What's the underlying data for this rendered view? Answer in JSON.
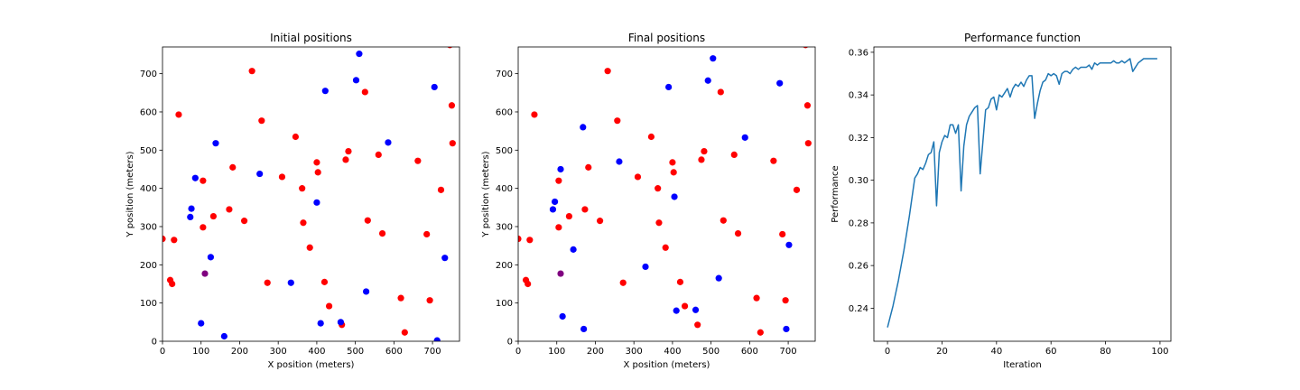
{
  "chart_data": [
    {
      "type": "scatter",
      "title": "Initial positions",
      "xlabel": "X position (meters)",
      "ylabel": "Y position (meters)",
      "xlim": [
        0,
        770
      ],
      "ylim": [
        0,
        770
      ],
      "xticks": [
        0,
        100,
        200,
        300,
        400,
        500,
        600,
        700
      ],
      "yticks": [
        0,
        100,
        200,
        300,
        400,
        500,
        600,
        700
      ],
      "grid": false,
      "colors": {
        "red": "#ff0000",
        "blue": "#0000ff",
        "purple": "#800080"
      },
      "red": [
        [
          0,
          268
        ],
        [
          30,
          265
        ],
        [
          20,
          160
        ],
        [
          25,
          150
        ],
        [
          42,
          593
        ],
        [
          105,
          420
        ],
        [
          105,
          298
        ],
        [
          132,
          327
        ],
        [
          173,
          345
        ],
        [
          182,
          455
        ],
        [
          212,
          315
        ],
        [
          232,
          707
        ],
        [
          257,
          577
        ],
        [
          272,
          153
        ],
        [
          310,
          430
        ],
        [
          345,
          535
        ],
        [
          362,
          400
        ],
        [
          365,
          310
        ],
        [
          382,
          245
        ],
        [
          400,
          468
        ],
        [
          403,
          442
        ],
        [
          420,
          155
        ],
        [
          432,
          92
        ],
        [
          465,
          43
        ],
        [
          475,
          475
        ],
        [
          482,
          497
        ],
        [
          525,
          652
        ],
        [
          532,
          316
        ],
        [
          560,
          488
        ],
        [
          570,
          282
        ],
        [
          618,
          113
        ],
        [
          628,
          23
        ],
        [
          662,
          472
        ],
        [
          685,
          280
        ],
        [
          693,
          107
        ],
        [
          722,
          396
        ],
        [
          745,
          775
        ],
        [
          750,
          617
        ],
        [
          752,
          518
        ]
      ],
      "blue": [
        [
          85,
          427
        ],
        [
          100,
          47
        ],
        [
          138,
          518
        ],
        [
          160,
          13
        ],
        [
          75,
          347
        ],
        [
          72,
          325
        ],
        [
          125,
          220
        ],
        [
          252,
          438
        ],
        [
          333,
          153
        ],
        [
          400,
          363
        ],
        [
          410,
          47
        ],
        [
          422,
          655
        ],
        [
          462,
          50
        ],
        [
          502,
          683
        ],
        [
          510,
          752
        ],
        [
          528,
          130
        ],
        [
          585,
          520
        ],
        [
          705,
          665
        ],
        [
          712,
          2
        ],
        [
          732,
          218
        ]
      ],
      "purple": [
        [
          110,
          177
        ]
      ]
    },
    {
      "type": "scatter",
      "title": "Final positions",
      "xlabel": "X position (meters)",
      "ylabel": "Y position (meters)",
      "xlim": [
        0,
        770
      ],
      "ylim": [
        0,
        770
      ],
      "xticks": [
        0,
        100,
        200,
        300,
        400,
        500,
        600,
        700
      ],
      "yticks": [
        0,
        100,
        200,
        300,
        400,
        500,
        600,
        700
      ],
      "grid": false,
      "colors": {
        "red": "#ff0000",
        "blue": "#0000ff",
        "purple": "#800080"
      },
      "red": [
        [
          0,
          268
        ],
        [
          30,
          265
        ],
        [
          20,
          160
        ],
        [
          25,
          150
        ],
        [
          42,
          593
        ],
        [
          105,
          420
        ],
        [
          105,
          298
        ],
        [
          132,
          327
        ],
        [
          173,
          345
        ],
        [
          182,
          455
        ],
        [
          212,
          315
        ],
        [
          232,
          707
        ],
        [
          257,
          577
        ],
        [
          272,
          153
        ],
        [
          310,
          430
        ],
        [
          345,
          535
        ],
        [
          362,
          400
        ],
        [
          365,
          310
        ],
        [
          382,
          245
        ],
        [
          400,
          468
        ],
        [
          403,
          442
        ],
        [
          420,
          155
        ],
        [
          432,
          92
        ],
        [
          465,
          43
        ],
        [
          475,
          475
        ],
        [
          482,
          497
        ],
        [
          525,
          652
        ],
        [
          532,
          316
        ],
        [
          560,
          488
        ],
        [
          570,
          282
        ],
        [
          618,
          113
        ],
        [
          628,
          23
        ],
        [
          662,
          472
        ],
        [
          685,
          280
        ],
        [
          693,
          107
        ],
        [
          722,
          396
        ],
        [
          745,
          775
        ],
        [
          750,
          617
        ],
        [
          752,
          518
        ]
      ],
      "blue": [
        [
          90,
          345
        ],
        [
          95,
          365
        ],
        [
          110,
          450
        ],
        [
          115,
          65
        ],
        [
          143,
          240
        ],
        [
          168,
          560
        ],
        [
          170,
          32
        ],
        [
          262,
          470
        ],
        [
          330,
          195
        ],
        [
          390,
          665
        ],
        [
          405,
          378
        ],
        [
          410,
          80
        ],
        [
          460,
          82
        ],
        [
          492,
          682
        ],
        [
          505,
          740
        ],
        [
          520,
          165
        ],
        [
          588,
          533
        ],
        [
          678,
          675
        ],
        [
          695,
          32
        ],
        [
          702,
          252
        ]
      ],
      "purple": [
        [
          110,
          177
        ]
      ]
    },
    {
      "type": "line",
      "title": "Performance function",
      "xlabel": "Iteration",
      "ylabel": "Performance",
      "xlim": [
        -5,
        104
      ],
      "ylim": [
        0.2245,
        0.3625
      ],
      "xticks": [
        0,
        20,
        40,
        60,
        80,
        100
      ],
      "yticks": [
        0.24,
        0.26,
        0.28,
        0.3,
        0.32,
        0.34,
        0.36
      ],
      "ytick_labels": [
        "0.24",
        "0.26",
        "0.28",
        "0.30",
        "0.32",
        "0.34",
        "0.36"
      ],
      "grid": false,
      "series": [
        {
          "color": "#1f77b4",
          "x": [
            0,
            1,
            2,
            3,
            4,
            5,
            6,
            7,
            8,
            9,
            10,
            11,
            12,
            13,
            14,
            15,
            16,
            17,
            18,
            19,
            20,
            21,
            22,
            23,
            24,
            25,
            26,
            27,
            28,
            29,
            30,
            31,
            32,
            33,
            34,
            35,
            36,
            37,
            38,
            39,
            40,
            41,
            42,
            43,
            44,
            45,
            46,
            47,
            48,
            49,
            50,
            51,
            52,
            53,
            54,
            55,
            56,
            57,
            58,
            59,
            60,
            61,
            62,
            63,
            64,
            65,
            66,
            67,
            68,
            69,
            70,
            71,
            72,
            73,
            74,
            75,
            76,
            77,
            78,
            79,
            80,
            81,
            82,
            83,
            84,
            85,
            86,
            87,
            88,
            89,
            90,
            91,
            92,
            93,
            94,
            95,
            96,
            97,
            98,
            99
          ],
          "values": [
            0.231,
            0.236,
            0.241,
            0.247,
            0.253,
            0.26,
            0.267,
            0.275,
            0.283,
            0.292,
            0.301,
            0.303,
            0.306,
            0.305,
            0.308,
            0.312,
            0.313,
            0.318,
            0.288,
            0.313,
            0.318,
            0.321,
            0.32,
            0.326,
            0.326,
            0.322,
            0.326,
            0.295,
            0.316,
            0.326,
            0.33,
            0.332,
            0.334,
            0.335,
            0.303,
            0.318,
            0.333,
            0.334,
            0.338,
            0.339,
            0.333,
            0.34,
            0.339,
            0.341,
            0.343,
            0.339,
            0.343,
            0.345,
            0.344,
            0.346,
            0.344,
            0.347,
            0.349,
            0.349,
            0.329,
            0.336,
            0.342,
            0.346,
            0.347,
            0.35,
            0.349,
            0.35,
            0.349,
            0.345,
            0.35,
            0.351,
            0.351,
            0.35,
            0.352,
            0.353,
            0.352,
            0.353,
            0.353,
            0.353,
            0.354,
            0.352,
            0.355,
            0.354,
            0.355,
            0.355,
            0.355,
            0.355,
            0.355,
            0.356,
            0.355,
            0.355,
            0.356,
            0.355,
            0.356,
            0.357,
            0.351,
            0.353,
            0.355,
            0.356,
            0.357,
            0.357,
            0.357,
            0.357,
            0.357,
            0.357
          ]
        }
      ]
    }
  ]
}
